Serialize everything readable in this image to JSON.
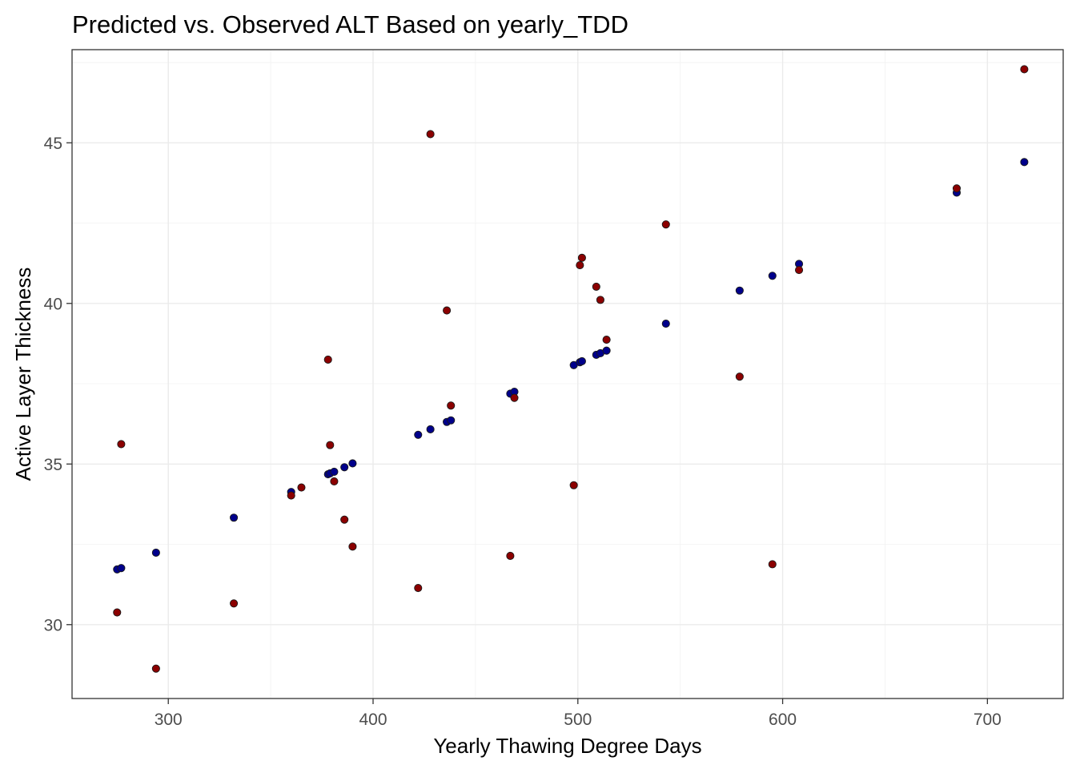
{
  "chart_data": {
    "type": "scatter",
    "title": "Predicted vs. Observed ALT Based on yearly_TDD",
    "xlabel": "Yearly Thawing Degree Days",
    "ylabel": "Active Layer Thickness",
    "xlim": [
      253,
      737
    ],
    "ylim": [
      27.7,
      47.9
    ],
    "xticks": [
      300,
      400,
      500,
      600,
      700
    ],
    "yticks": [
      30,
      35,
      40,
      45
    ],
    "xticks_minor": [
      250,
      350,
      450,
      550,
      650,
      750
    ],
    "yticks_minor": [
      27.5,
      32.5,
      37.5,
      42.5,
      47.5
    ],
    "grid": true,
    "legend": "none",
    "series": [
      {
        "color": "#00008b",
        "x": [
          275,
          277,
          294,
          332,
          360,
          378,
          379,
          381,
          386,
          390,
          422,
          428,
          436,
          438,
          467,
          469,
          498,
          501,
          502,
          509,
          511,
          514,
          543,
          579,
          595,
          608,
          685,
          718
        ],
        "y": [
          31.72,
          31.76,
          32.24,
          33.33,
          34.13,
          34.68,
          34.71,
          34.76,
          34.9,
          35.02,
          35.91,
          36.08,
          36.31,
          36.36,
          37.19,
          37.25,
          38.08,
          38.17,
          38.2,
          38.4,
          38.45,
          38.53,
          39.37,
          40.4,
          40.86,
          41.23,
          43.45,
          44.4
        ]
      },
      {
        "color": "#8b0000",
        "x": [
          275,
          277,
          294,
          332,
          360,
          365,
          378,
          379,
          381,
          386,
          390,
          422,
          428,
          436,
          438,
          467,
          469,
          498,
          501,
          502,
          509,
          511,
          514,
          543,
          579,
          595,
          608,
          685,
          718
        ],
        "y": [
          30.38,
          35.62,
          28.63,
          30.66,
          34.02,
          34.27,
          38.25,
          35.59,
          34.46,
          33.27,
          32.43,
          31.14,
          45.27,
          39.78,
          36.82,
          32.14,
          37.06,
          34.34,
          41.19,
          41.42,
          40.52,
          40.11,
          38.87,
          42.46,
          37.72,
          31.88,
          41.04,
          43.58,
          47.29
        ]
      }
    ]
  }
}
